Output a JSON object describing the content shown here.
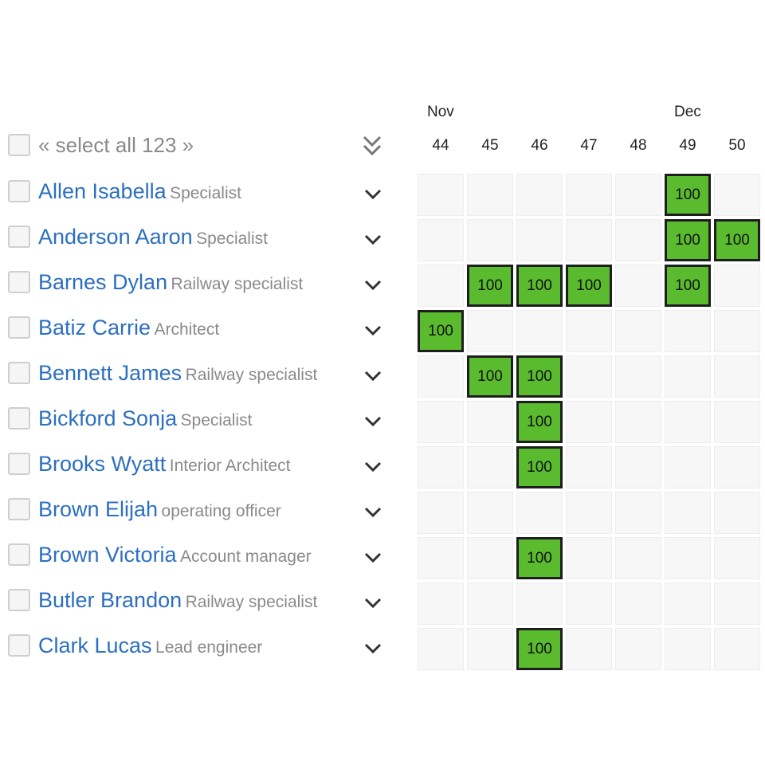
{
  "header": {
    "months": [
      {
        "label": "Nov",
        "week_index": 0
      },
      {
        "label": "Dec",
        "week_index": 5
      }
    ],
    "weeks": [
      "44",
      "45",
      "46",
      "47",
      "48",
      "49",
      "50"
    ],
    "select_all_label": "« select all 123 »",
    "expand_all_icon": "double-chevron-down-icon"
  },
  "row_icon": "chevron-down-icon",
  "allocation_value": "100",
  "colors": {
    "allocated": "#5bbb2f",
    "empty": "#f7f7f7",
    "name": "#2c6fc0",
    "role": "#8a8a8a"
  },
  "people": [
    {
      "name": "Allen Isabella",
      "role": "Specialist",
      "weeks": [
        5
      ]
    },
    {
      "name": "Anderson Aaron",
      "role": "Specialist",
      "weeks": [
        5,
        6
      ]
    },
    {
      "name": "Barnes Dylan",
      "role": "Railway specialist",
      "weeks": [
        1,
        2,
        3,
        5
      ]
    },
    {
      "name": "Batiz Carrie",
      "role": "Architect",
      "weeks": [
        0
      ]
    },
    {
      "name": "Bennett James",
      "role": "Railway specialist",
      "weeks": [
        1,
        2
      ]
    },
    {
      "name": "Bickford Sonja",
      "role": "Specialist",
      "weeks": [
        2
      ]
    },
    {
      "name": "Brooks Wyatt",
      "role": "Interior Architect",
      "weeks": [
        2
      ]
    },
    {
      "name": "Brown Elijah",
      "role": "operating officer",
      "weeks": []
    },
    {
      "name": "Brown Victoria",
      "role": "Account manager",
      "weeks": [
        2
      ]
    },
    {
      "name": "Butler Brandon",
      "role": "Railway specialist",
      "weeks": []
    },
    {
      "name": "Clark Lucas",
      "role": "Lead engineer",
      "weeks": [
        2
      ]
    }
  ]
}
